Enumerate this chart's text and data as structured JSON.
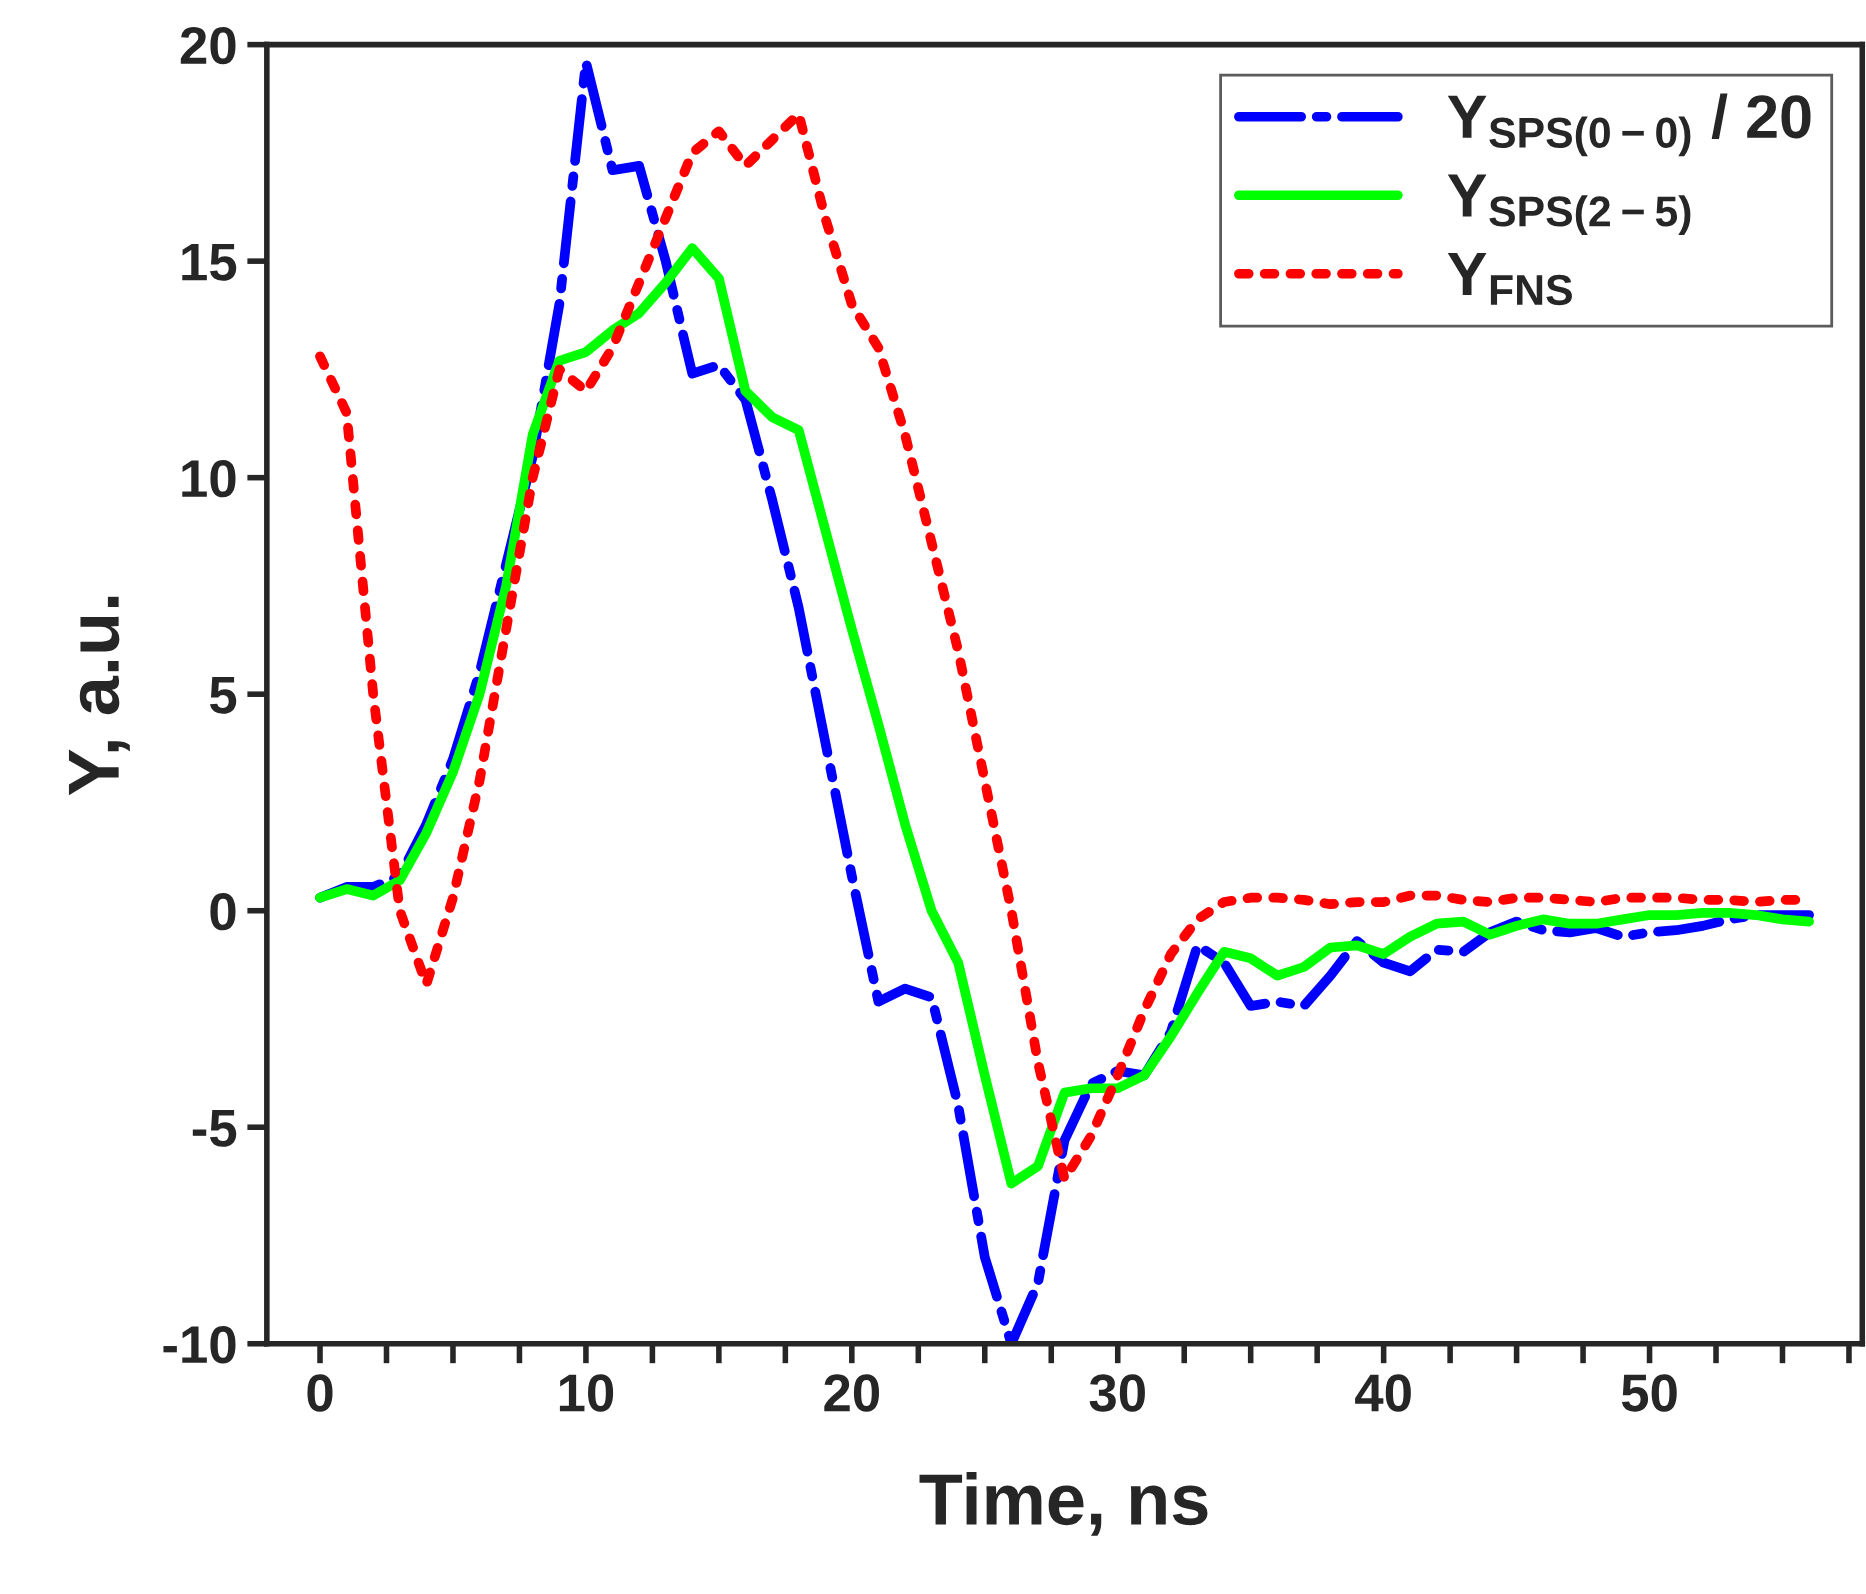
{
  "chart_data": {
    "type": "line",
    "xlabel": "Time, ns",
    "ylabel": "Y, a.u.",
    "x": [
      0,
      1,
      2,
      3,
      4,
      5,
      6,
      7,
      8,
      9,
      10,
      11,
      12,
      13,
      14,
      15,
      16,
      17,
      18,
      19,
      20,
      21,
      22,
      23,
      24,
      25,
      26,
      27,
      28,
      29,
      30,
      31,
      32,
      33,
      34,
      35,
      36,
      37,
      38,
      39,
      40,
      41,
      42,
      43,
      44,
      45,
      46,
      47,
      48,
      49,
      50,
      51,
      52,
      53,
      54,
      55,
      56
    ],
    "series": [
      {
        "name": "Y$_{SPS(0−0)}$ / 20",
        "color": "#0000ff",
        "line_style": "dashdot",
        "values": [
          0.3,
          0.55,
          0.55,
          0.8,
          2,
          3.5,
          5.5,
          8,
          10.5,
          14,
          19.6,
          17.1,
          17.2,
          15,
          12.4,
          12.6,
          11.8,
          9.5,
          7,
          3.9,
          0.8,
          -2.1,
          -1.8,
          -2.0,
          -4.5,
          -8,
          -10,
          -8.6,
          -5.3,
          -4,
          -3.7,
          -3.8,
          -2.8,
          -0.8,
          -1.2,
          -2.2,
          -2.1,
          -2.2,
          -1.5,
          -0.7,
          -1.2,
          -1.4,
          -0.9,
          -0.95,
          -0.5,
          -0.25,
          -0.45,
          -0.5,
          -0.4,
          -0.6,
          -0.5,
          -0.45,
          -0.35,
          -0.2,
          -0.1,
          -0.1,
          -0.1
        ]
      },
      {
        "name": "Y$_{SPS(2−5)}$",
        "color": "#00ff00",
        "line_style": "solid",
        "values": [
          0.3,
          0.5,
          0.35,
          0.7,
          1.8,
          3.2,
          5,
          7.5,
          11,
          12.7,
          12.9,
          13.4,
          13.8,
          14.5,
          15.3,
          14.6,
          12,
          11.4,
          11.1,
          8.8,
          6.5,
          4.3,
          2,
          0,
          -1.2,
          -3.8,
          -6.3,
          -5.9,
          -4.2,
          -4.1,
          -4.1,
          -3.8,
          -2.9,
          -1.9,
          -0.95,
          -1.1,
          -1.5,
          -1.3,
          -0.85,
          -0.8,
          -1.0,
          -0.6,
          -0.3,
          -0.25,
          -0.55,
          -0.35,
          -0.2,
          -0.3,
          -0.3,
          -0.2,
          -0.1,
          -0.1,
          -0.05,
          -0.05,
          -0.1,
          -0.2,
          -0.25
        ]
      },
      {
        "name": "Y$_{FNS}$",
        "color": "#ff0000",
        "line_style": "dotted",
        "values": [
          12.8,
          11.5,
          5,
          0,
          -1.7,
          0.3,
          3,
          6.5,
          10,
          12.5,
          12,
          13,
          14.5,
          16,
          17.5,
          18,
          17.2,
          17.8,
          18.4,
          16,
          14,
          13,
          11,
          8.5,
          6,
          3,
          0,
          -3.5,
          -6.2,
          -5.2,
          -3.8,
          -2.3,
          -1,
          -0.2,
          0.2,
          0.3,
          0.3,
          0.25,
          0.15,
          0.2,
          0.2,
          0.35,
          0.35,
          0.25,
          0.2,
          0.3,
          0.3,
          0.25,
          0.2,
          0.3,
          0.3,
          0.3,
          0.25,
          0.25,
          0.2,
          0.25,
          0.25
        ]
      }
    ],
    "xlim": [
      -2,
      58
    ],
    "ylim": [
      -10,
      20
    ],
    "xticks": [
      0,
      {
        "value": 2.5,
        "label": null
      },
      {
        "value": 5,
        "label": null
      },
      {
        "value": 7.5,
        "label": null
      },
      10,
      {
        "value": 12.5,
        "label": null
      },
      {
        "value": 15,
        "label": null
      },
      {
        "value": 17.5,
        "label": null
      },
      20,
      {
        "value": 22.5,
        "label": null
      },
      {
        "value": 25,
        "label": null
      },
      {
        "value": 27.5,
        "label": null
      },
      30,
      {
        "value": 32.5,
        "label": null
      },
      {
        "value": 35,
        "label": null
      },
      {
        "value": 37.5,
        "label": null
      },
      40,
      {
        "value": 42.5,
        "label": null
      },
      {
        "value": 45,
        "label": null
      },
      {
        "value": 47.5,
        "label": null
      },
      50,
      {
        "value": 52.5,
        "label": null
      },
      {
        "value": 55,
        "label": null
      },
      {
        "value": 57.5,
        "label": null
      }
    ],
    "yticks": [
      -10,
      -5,
      0,
      5,
      10,
      15,
      20
    ],
    "grid": false,
    "legend": "top right"
  }
}
